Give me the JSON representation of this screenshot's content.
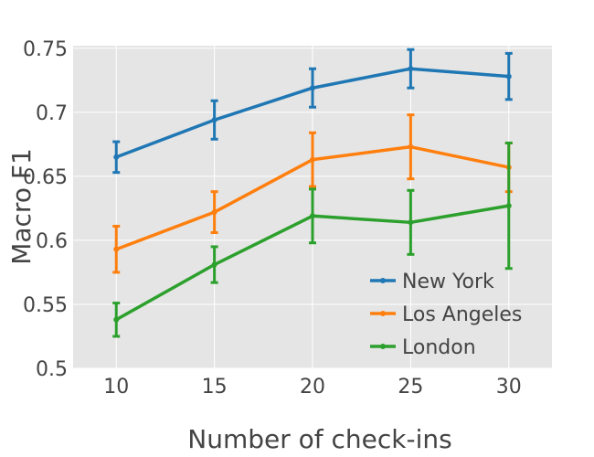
{
  "chart_data": {
    "type": "line",
    "title": "",
    "xlabel": "Number of check-ins",
    "ylabel": "Macro F1",
    "x": [
      10,
      15,
      20,
      25,
      30
    ],
    "x_ticks": [
      "10",
      "15",
      "20",
      "25",
      "30"
    ],
    "xlim": [
      7.8,
      32.2
    ],
    "ylim": [
      0.5,
      0.752
    ],
    "y_ticks": [
      {
        "value": 0.5,
        "label": "0.5"
      },
      {
        "value": 0.55,
        "label": "0.55"
      },
      {
        "value": 0.6,
        "label": "0.6"
      },
      {
        "value": 0.65,
        "label": "0.65"
      },
      {
        "value": 0.7,
        "label": "0.7"
      },
      {
        "value": 0.75,
        "label": "0.75"
      }
    ],
    "grid": true,
    "background": "#e5e5e5",
    "legend_position": "bottom-right",
    "series": [
      {
        "name": "New York",
        "color": "#1f77b4",
        "values": [
          0.665,
          0.694,
          0.719,
          0.734,
          0.728
        ],
        "error": [
          0.012,
          0.015,
          0.015,
          0.015,
          0.018
        ]
      },
      {
        "name": "Los Angeles",
        "color": "#ff7f0e",
        "values": [
          0.593,
          0.622,
          0.663,
          0.673,
          0.657
        ],
        "error": [
          0.018,
          0.016,
          0.021,
          0.025,
          0.019
        ]
      },
      {
        "name": "London",
        "color": "#2ca02c",
        "values": [
          0.538,
          0.581,
          0.619,
          0.614,
          0.627
        ],
        "error": [
          0.013,
          0.014,
          0.021,
          0.025,
          0.049
        ]
      }
    ]
  }
}
